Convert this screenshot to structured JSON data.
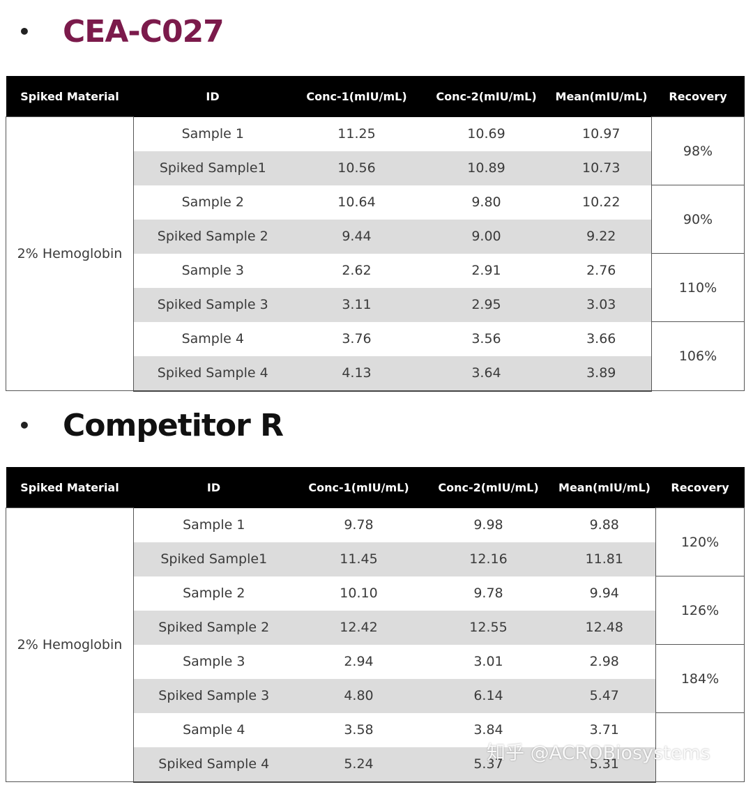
{
  "sections": [
    {
      "title": "CEA-C027",
      "headers": [
        "Spiked Material",
        "ID",
        "Conc-1(mIU/mL)",
        "Conc-2(mIU/mL)",
        "Mean(mIU/mL)",
        "Recovery"
      ],
      "material": "2% Hemoglobin",
      "rows": [
        [
          "Sample 1",
          "11.25",
          "10.69",
          "10.97"
        ],
        [
          "Spiked Sample1",
          "10.56",
          "10.89",
          "10.73"
        ],
        [
          "Sample 2",
          "10.64",
          "9.80",
          "10.22"
        ],
        [
          "Spiked Sample 2",
          "9.44",
          "9.00",
          "9.22"
        ],
        [
          "Sample 3",
          "2.62",
          "2.91",
          "2.76"
        ],
        [
          "Spiked Sample 3",
          "3.11",
          "2.95",
          "3.03"
        ],
        [
          "Sample 4",
          "3.76",
          "3.56",
          "3.66"
        ],
        [
          "Spiked Sample 4",
          "4.13",
          "3.64",
          "3.89"
        ]
      ],
      "recovery": [
        "98%",
        "90%",
        "110%",
        "106%"
      ]
    },
    {
      "title": "Competitor R",
      "headers": [
        "Spiked Material",
        "ID",
        "Conc-1(mIU/mL)",
        "Conc-2(mIU/mL)",
        "Mean(mIU/mL)",
        "Recovery"
      ],
      "material": "2% Hemoglobin",
      "rows": [
        [
          "Sample 1",
          "9.78",
          "9.98",
          "9.88"
        ],
        [
          "Spiked Sample1",
          "11.45",
          "12.16",
          "11.81"
        ],
        [
          "Sample 2",
          "10.10",
          "9.78",
          "9.94"
        ],
        [
          "Spiked Sample 2",
          "12.42",
          "12.55",
          "12.48"
        ],
        [
          "Sample 3",
          "2.94",
          "3.01",
          "2.98"
        ],
        [
          "Spiked Sample 3",
          "4.80",
          "6.14",
          "5.47"
        ],
        [
          "Sample 4",
          "3.58",
          "3.84",
          "3.71"
        ],
        [
          "Spiked Sample 4",
          "5.24",
          "5.37",
          "5.31"
        ]
      ],
      "recovery": [
        "120%",
        "126%",
        "184%",
        ""
      ]
    }
  ],
  "bullet": "•",
  "watermark": "知乎 @ACROBiosystems"
}
